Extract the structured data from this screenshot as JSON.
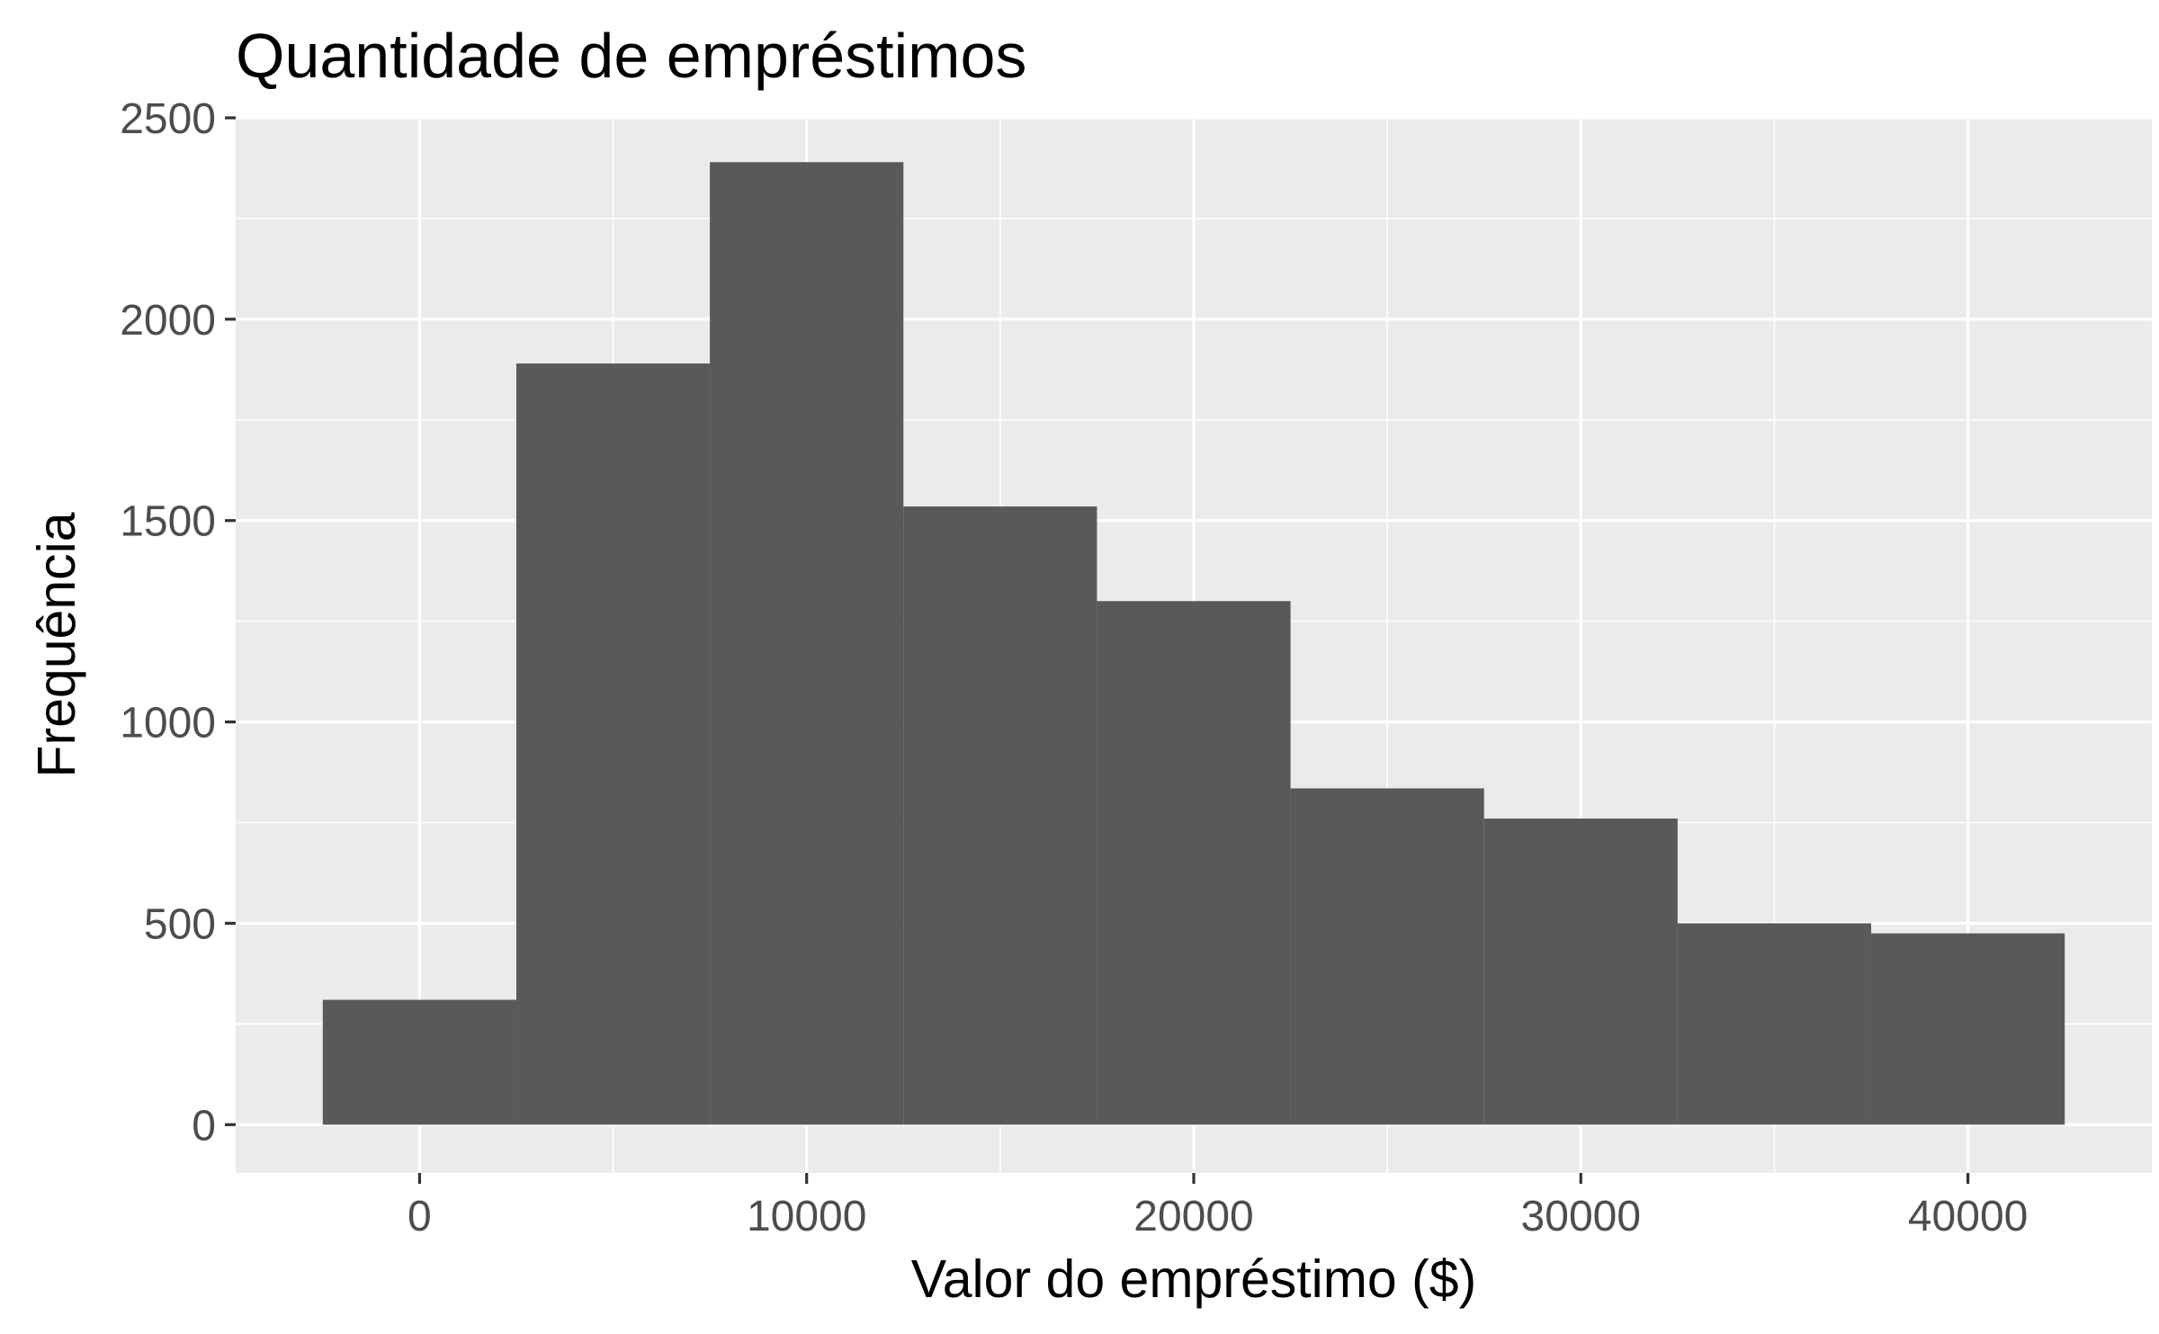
{
  "chart_data": {
    "type": "bar",
    "subtype": "histogram",
    "title": "Quantidade de empréstimos",
    "xlabel": "Valor do empréstimo ($)",
    "ylabel": "Frequência",
    "bin_width": 5000,
    "bins": [
      {
        "x_start": -2500,
        "x_end": 2500,
        "count": 310
      },
      {
        "x_start": 2500,
        "x_end": 7500,
        "count": 1890
      },
      {
        "x_start": 7500,
        "x_end": 12500,
        "count": 2390
      },
      {
        "x_start": 12500,
        "x_end": 17500,
        "count": 1535
      },
      {
        "x_start": 17500,
        "x_end": 22500,
        "count": 1300
      },
      {
        "x_start": 22500,
        "x_end": 27500,
        "count": 835
      },
      {
        "x_start": 27500,
        "x_end": 32500,
        "count": 760
      },
      {
        "x_start": 32500,
        "x_end": 37500,
        "count": 500
      },
      {
        "x_start": 37500,
        "x_end": 42500,
        "count": 475
      }
    ],
    "xlim": [
      -4750,
      44750
    ],
    "ylim": [
      -120,
      2500
    ],
    "x_ticks": [
      0,
      10000,
      20000,
      30000,
      40000
    ],
    "x_tick_labels": [
      "0",
      "10000",
      "20000",
      "30000",
      "40000"
    ],
    "x_minor_ticks": [
      5000,
      15000,
      25000,
      35000
    ],
    "y_ticks": [
      0,
      500,
      1000,
      1500,
      2000,
      2500
    ],
    "y_tick_labels": [
      "0",
      "500",
      "1000",
      "1500",
      "2000",
      "2500"
    ],
    "y_minor_ticks": [
      250,
      750,
      1250,
      1750,
      2250
    ],
    "grid": true,
    "colors": {
      "bar_fill": "#595959",
      "panel_background": "#ebebeb",
      "grid_line": "#ffffff",
      "tick_label": "#4d4d4d",
      "tick_mark": "#333333",
      "title": "#000000"
    }
  }
}
